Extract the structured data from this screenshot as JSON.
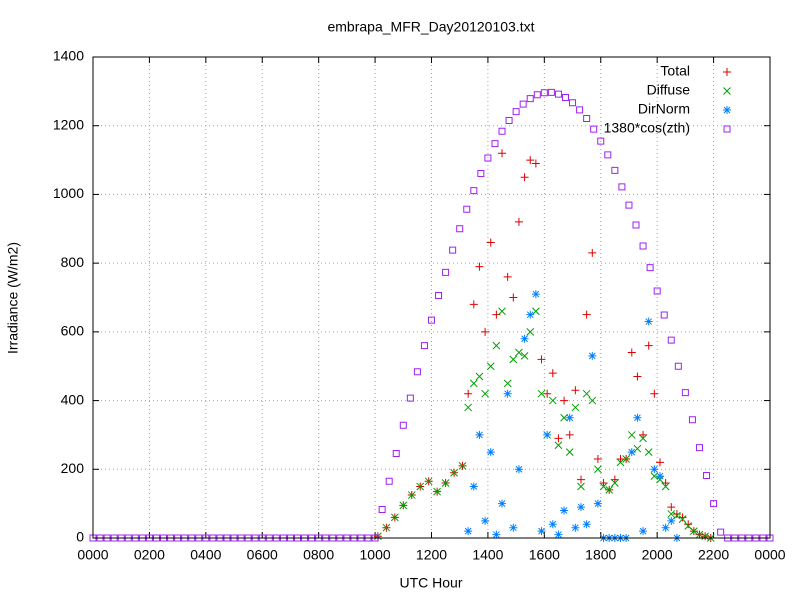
{
  "chart_data": {
    "type": "scatter",
    "title": "embrapa_MFR_Day20120103.txt",
    "x_label": "UTC Hour",
    "y_label": "Irradiance (W/m2)",
    "xlim": [
      0,
      24
    ],
    "ylim": [
      0,
      1400
    ],
    "xticks": [
      {
        "value": 0,
        "label": "0000"
      },
      {
        "value": 2,
        "label": "0200"
      },
      {
        "value": 4,
        "label": "0400"
      },
      {
        "value": 6,
        "label": "0600"
      },
      {
        "value": 8,
        "label": "0800"
      },
      {
        "value": 10,
        "label": "1000"
      },
      {
        "value": 12,
        "label": "1200"
      },
      {
        "value": 14,
        "label": "1400"
      },
      {
        "value": 16,
        "label": "1600"
      },
      {
        "value": 18,
        "label": "1800"
      },
      {
        "value": 20,
        "label": "2000"
      },
      {
        "value": 22,
        "label": "2200"
      },
      {
        "value": 24,
        "label": "0000"
      }
    ],
    "yticks": [
      0,
      200,
      400,
      600,
      800,
      1000,
      1200,
      1400
    ],
    "grid": true,
    "legend": "top-right",
    "series": [
      {
        "name": "Total",
        "color": "#e00000",
        "marker": "plus",
        "x": [
          10.1,
          10.4,
          10.7,
          11,
          11.3,
          11.6,
          11.9,
          12.2,
          12.5,
          12.8,
          13.1,
          13.3,
          13.5,
          13.7,
          13.9,
          14.1,
          14.3,
          14.5,
          14.7,
          14.9,
          15.1,
          15.3,
          15.5,
          15.7,
          15.9,
          16.1,
          16.3,
          16.5,
          16.7,
          16.9,
          17.1,
          17.3,
          17.5,
          17.7,
          17.9,
          18.1,
          18.3,
          18.5,
          18.7,
          18.9,
          19.1,
          19.3,
          19.5,
          19.7,
          19.9,
          20.1,
          20.3,
          20.5,
          20.7,
          20.9,
          21.1,
          21.3,
          21.5,
          21.7,
          21.9
        ],
        "values": [
          5,
          30,
          60,
          95,
          125,
          150,
          165,
          135,
          160,
          190,
          210,
          420,
          680,
          790,
          600,
          860,
          650,
          1120,
          760,
          700,
          920,
          1050,
          1100,
          1090,
          520,
          420,
          480,
          290,
          400,
          300,
          430,
          170,
          650,
          830,
          230,
          160,
          140,
          170,
          230,
          230,
          540,
          470,
          300,
          560,
          420,
          220,
          160,
          90,
          70,
          60,
          40,
          20,
          10,
          5,
          0
        ]
      },
      {
        "name": "Diffuse",
        "color": "#00a000",
        "marker": "cross",
        "x": [
          10.1,
          10.4,
          10.7,
          11,
          11.3,
          11.6,
          11.9,
          12.2,
          12.5,
          12.8,
          13.1,
          13.3,
          13.5,
          13.7,
          13.9,
          14.1,
          14.3,
          14.5,
          14.7,
          14.9,
          15.1,
          15.3,
          15.5,
          15.7,
          15.9,
          16.1,
          16.3,
          16.5,
          16.7,
          16.9,
          17.1,
          17.3,
          17.5,
          17.7,
          17.9,
          18.1,
          18.3,
          18.5,
          18.7,
          18.9,
          19.1,
          19.3,
          19.5,
          19.7,
          19.9,
          20.1,
          20.3,
          20.5,
          20.7,
          20.9,
          21.1,
          21.3,
          21.5,
          21.7,
          21.9
        ],
        "values": [
          5,
          30,
          60,
          95,
          125,
          150,
          165,
          135,
          160,
          190,
          210,
          380,
          450,
          470,
          420,
          500,
          560,
          660,
          450,
          520,
          540,
          530,
          600,
          660,
          420,
          300,
          400,
          270,
          350,
          250,
          380,
          150,
          420,
          400,
          200,
          150,
          140,
          160,
          220,
          230,
          300,
          260,
          290,
          250,
          180,
          170,
          150,
          70,
          65,
          55,
          35,
          20,
          10,
          5,
          0
        ]
      },
      {
        "name": "DirNorm",
        "color": "#0080ff",
        "marker": "star",
        "x": [
          13.3,
          13.5,
          13.7,
          13.9,
          14.1,
          14.3,
          14.5,
          14.7,
          14.9,
          15.1,
          15.3,
          15.5,
          15.7,
          15.9,
          16.1,
          16.3,
          16.5,
          16.7,
          16.9,
          17.1,
          17.3,
          17.5,
          17.7,
          17.9,
          18.1,
          18.3,
          18.5,
          18.7,
          18.9,
          19.1,
          19.3,
          19.5,
          19.7,
          19.9,
          20.1,
          20.3,
          20.5,
          20.7
        ],
        "values": [
          20,
          150,
          300,
          50,
          250,
          10,
          100,
          420,
          30,
          200,
          580,
          650,
          710,
          20,
          300,
          40,
          10,
          80,
          350,
          30,
          90,
          40,
          530,
          100,
          0,
          0,
          0,
          0,
          0,
          250,
          350,
          20,
          630,
          200,
          180,
          30,
          50,
          0
        ]
      },
      {
        "name": "1380*cos(zth)",
        "color": "#a020f0",
        "marker": "square",
        "x": [
          0,
          0.25,
          0.5,
          0.75,
          1,
          1.25,
          1.5,
          1.75,
          2,
          2.25,
          2.5,
          2.75,
          3,
          3.25,
          3.5,
          3.75,
          4,
          4.25,
          4.5,
          4.75,
          5,
          5.25,
          5.5,
          5.75,
          6,
          6.25,
          6.5,
          6.75,
          7,
          7.25,
          7.5,
          7.75,
          8,
          8.25,
          8.5,
          8.75,
          9,
          9.25,
          9.5,
          9.75,
          10,
          10.25,
          10.5,
          10.75,
          11,
          11.25,
          11.5,
          11.75,
          12,
          12.25,
          12.5,
          12.75,
          13,
          13.25,
          13.5,
          13.75,
          14,
          14.25,
          14.5,
          14.75,
          15,
          15.25,
          15.5,
          15.75,
          16,
          16.25,
          16.5,
          16.75,
          17,
          17.25,
          17.5,
          17.75,
          18,
          18.25,
          18.5,
          18.75,
          19,
          19.25,
          19.5,
          19.75,
          20,
          20.25,
          20.5,
          20.75,
          21,
          21.25,
          21.5,
          21.75,
          22,
          22.25,
          22.5,
          22.75,
          23,
          23.25,
          23.5,
          23.75,
          24
        ],
        "values": [
          0,
          0,
          0,
          0,
          0,
          0,
          0,
          0,
          0,
          0,
          0,
          0,
          0,
          0,
          0,
          0,
          0,
          0,
          0,
          0,
          0,
          0,
          0,
          0,
          0,
          0,
          0,
          0,
          0,
          0,
          0,
          0,
          0,
          0,
          0,
          0,
          0,
          0,
          0,
          0,
          0,
          83,
          165,
          246,
          328,
          407,
          484,
          560,
          634,
          706,
          773,
          838,
          900,
          957,
          1011,
          1061,
          1106,
          1148,
          1184,
          1215,
          1241,
          1263,
          1279,
          1290,
          1296,
          1297,
          1292,
          1282,
          1267,
          1246,
          1221,
          1190,
          1155,
          1115,
          1070,
          1022,
          969,
          911,
          850,
          787,
          719,
          649,
          576,
          500,
          423,
          344,
          263,
          182,
          100,
          17,
          0,
          0,
          0,
          0,
          0,
          0,
          0
        ]
      }
    ]
  }
}
